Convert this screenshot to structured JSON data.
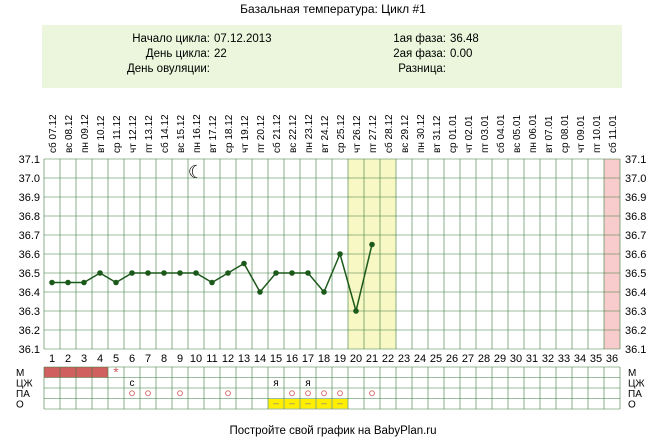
{
  "title": "Базальная температура: Цикл #1",
  "info": {
    "cycle_start_label": "Начало цикла:",
    "cycle_start_value": "07.12.2013",
    "cycle_day_label": "День цикла:",
    "cycle_day_value": "22",
    "ovulation_day_label": "День овуляции:",
    "ovulation_day_value": "",
    "phase1_label": "1ая фаза:",
    "phase1_value": "36.48",
    "phase2_label": "2ая фаза:",
    "phase2_value": "0.00",
    "difference_label": "Разница:",
    "difference_value": ""
  },
  "footer": "Постройте свой график на BabyPlan.ru",
  "chart_data": {
    "type": "line",
    "days": 36,
    "dates": [
      "07.12",
      "08.12",
      "09.12",
      "10.12",
      "11.12",
      "12.12",
      "13.12",
      "14.12",
      "15.12",
      "16.12",
      "17.12",
      "18.12",
      "19.12",
      "20.12",
      "21.12",
      "22.12",
      "23.12",
      "24.12",
      "25.12",
      "26.12",
      "27.12",
      "28.12",
      "29.12",
      "30.12",
      "31.12",
      "01.01",
      "02.01",
      "03.01",
      "04.01",
      "05.01",
      "06.01",
      "07.01",
      "08.01",
      "09.01",
      "10.01",
      "11.01"
    ],
    "weekdays": [
      "сб",
      "вс",
      "пн",
      "вт",
      "ср",
      "чт",
      "пт",
      "сб",
      "вс",
      "пн",
      "вт",
      "ср",
      "чт",
      "пт",
      "сб",
      "вс",
      "пн",
      "вт",
      "ср",
      "чт",
      "пт",
      "сб",
      "вс",
      "пн",
      "вт",
      "ср",
      "чт",
      "пт",
      "сб",
      "вс",
      "пн",
      "вт",
      "ср",
      "чт",
      "пт",
      "сб"
    ],
    "y_ticks": [
      "37.1",
      "37.0",
      "36.9",
      "36.8",
      "36.7",
      "36.6",
      "36.5",
      "36.4",
      "36.3",
      "36.2",
      "36.1"
    ],
    "ylim": [
      36.1,
      37.1
    ],
    "temperatures": [
      36.45,
      36.45,
      36.45,
      36.5,
      36.45,
      36.5,
      36.5,
      36.5,
      36.5,
      36.5,
      36.45,
      36.5,
      36.55,
      36.4,
      36.5,
      36.5,
      36.5,
      36.4,
      36.6,
      36.3,
      36.65
    ],
    "highlight_days": [
      20,
      22
    ],
    "highlight_color": "#f8f8c4",
    "end_marker_day": 36,
    "end_marker_color": "#f8cccc",
    "line_color": "#1c5a1c",
    "grid_color": "#3c7a3c",
    "moon_day": 10,
    "moon_glyph": "☾",
    "row_labels": [
      "М",
      "ЦЖ",
      "ПА",
      "О"
    ],
    "menstruation_days": [
      1,
      2,
      3,
      4
    ],
    "menstruation_color": "#d06060",
    "star_day": 5,
    "star_glyph": "*",
    "star_color": "#d06060",
    "cervical_marks": [
      {
        "day": 6,
        "text": "с"
      },
      {
        "day": 15,
        "text": "я"
      },
      {
        "day": 17,
        "text": "я"
      }
    ],
    "pa_days": [
      6,
      7,
      9,
      12,
      16,
      17,
      18,
      19,
      21
    ],
    "pa_glyph": "○",
    "pa_color": "#d06060",
    "o_days": [
      15,
      16,
      17,
      18,
      19
    ],
    "o_glyph": "–",
    "o_color": "#ffee00"
  }
}
